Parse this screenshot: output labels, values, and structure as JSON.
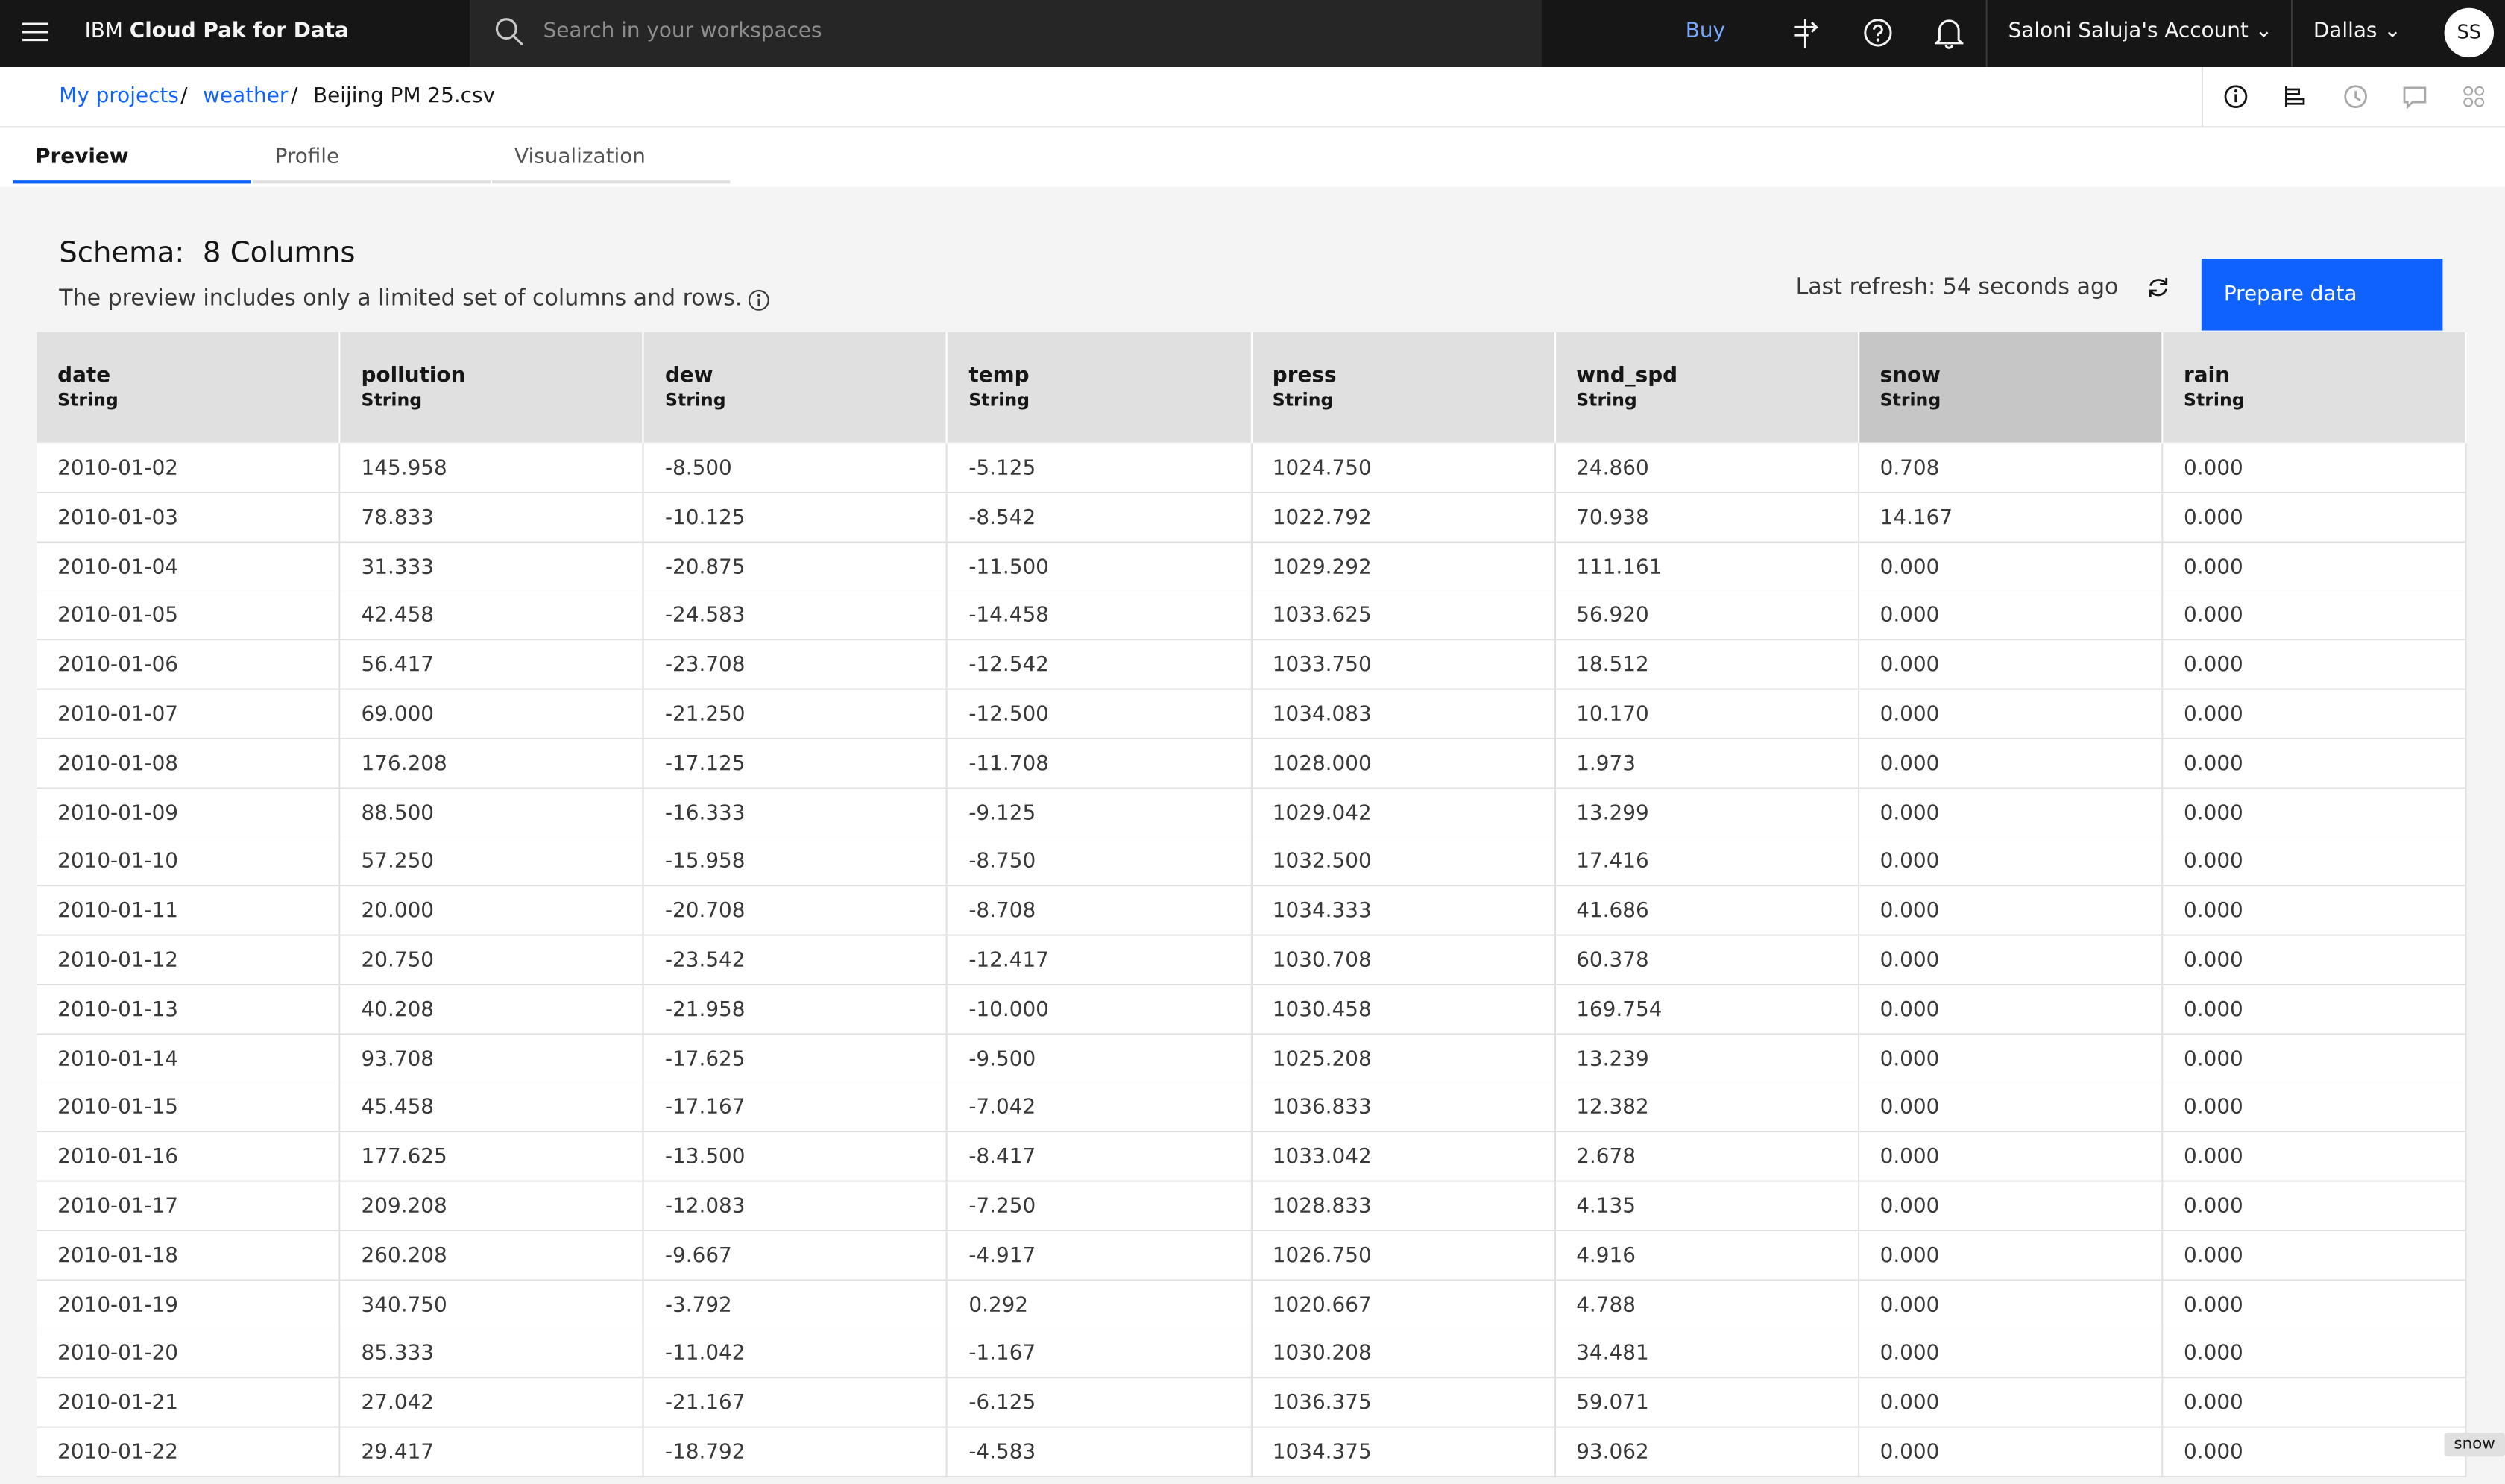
{
  "header": {
    "brand": "IBM",
    "product": "Cloud Pak for Data",
    "search_placeholder": "Search in your workspaces",
    "buy": "Buy",
    "account": "Saloni Saluja's Account",
    "region": "Dallas",
    "avatar": "SS"
  },
  "breadcrumb": [
    "My projects",
    "weather",
    "Beijing PM 25.csv"
  ],
  "tabs": [
    "Preview",
    "Profile",
    "Visualization"
  ],
  "schema": {
    "title": "Schema:",
    "columns_count": "8 Columns",
    "note": "The preview includes only a limited set of columns and rows.",
    "last_refresh": "Last refresh: 54 seconds ago",
    "button": "Prepare data"
  },
  "table": {
    "columns": [
      {
        "name": "date",
        "type": "String"
      },
      {
        "name": "pollution",
        "type": "String"
      },
      {
        "name": "dew",
        "type": "String"
      },
      {
        "name": "temp",
        "type": "String"
      },
      {
        "name": "press",
        "type": "String"
      },
      {
        "name": "wnd_spd",
        "type": "String"
      },
      {
        "name": "snow",
        "type": "String"
      },
      {
        "name": "rain",
        "type": "String"
      }
    ],
    "rows": [
      [
        "2010-01-02",
        "145.958",
        "-8.500",
        "-5.125",
        "1024.750",
        "24.860",
        "0.708",
        "0.000"
      ],
      [
        "2010-01-03",
        "78.833",
        "-10.125",
        "-8.542",
        "1022.792",
        "70.938",
        "14.167",
        "0.000"
      ],
      [
        "2010-01-04",
        "31.333",
        "-20.875",
        "-11.500",
        "1029.292",
        "111.161",
        "0.000",
        "0.000"
      ],
      [
        "2010-01-05",
        "42.458",
        "-24.583",
        "-14.458",
        "1033.625",
        "56.920",
        "0.000",
        "0.000"
      ],
      [
        "2010-01-06",
        "56.417",
        "-23.708",
        "-12.542",
        "1033.750",
        "18.512",
        "0.000",
        "0.000"
      ],
      [
        "2010-01-07",
        "69.000",
        "-21.250",
        "-12.500",
        "1034.083",
        "10.170",
        "0.000",
        "0.000"
      ],
      [
        "2010-01-08",
        "176.208",
        "-17.125",
        "-11.708",
        "1028.000",
        "1.973",
        "0.000",
        "0.000"
      ],
      [
        "2010-01-09",
        "88.500",
        "-16.333",
        "-9.125",
        "1029.042",
        "13.299",
        "0.000",
        "0.000"
      ],
      [
        "2010-01-10",
        "57.250",
        "-15.958",
        "-8.750",
        "1032.500",
        "17.416",
        "0.000",
        "0.000"
      ],
      [
        "2010-01-11",
        "20.000",
        "-20.708",
        "-8.708",
        "1034.333",
        "41.686",
        "0.000",
        "0.000"
      ],
      [
        "2010-01-12",
        "20.750",
        "-23.542",
        "-12.417",
        "1030.708",
        "60.378",
        "0.000",
        "0.000"
      ],
      [
        "2010-01-13",
        "40.208",
        "-21.958",
        "-10.000",
        "1030.458",
        "169.754",
        "0.000",
        "0.000"
      ],
      [
        "2010-01-14",
        "93.708",
        "-17.625",
        "-9.500",
        "1025.208",
        "13.239",
        "0.000",
        "0.000"
      ],
      [
        "2010-01-15",
        "45.458",
        "-17.167",
        "-7.042",
        "1036.833",
        "12.382",
        "0.000",
        "0.000"
      ],
      [
        "2010-01-16",
        "177.625",
        "-13.500",
        "-8.417",
        "1033.042",
        "2.678",
        "0.000",
        "0.000"
      ],
      [
        "2010-01-17",
        "209.208",
        "-12.083",
        "-7.250",
        "1028.833",
        "4.135",
        "0.000",
        "0.000"
      ],
      [
        "2010-01-18",
        "260.208",
        "-9.667",
        "-4.917",
        "1026.750",
        "4.916",
        "0.000",
        "0.000"
      ],
      [
        "2010-01-19",
        "340.750",
        "-3.792",
        "0.292",
        "1020.667",
        "4.788",
        "0.000",
        "0.000"
      ],
      [
        "2010-01-20",
        "85.333",
        "-11.042",
        "-1.167",
        "1030.208",
        "34.481",
        "0.000",
        "0.000"
      ],
      [
        "2010-01-21",
        "27.042",
        "-21.167",
        "-6.125",
        "1036.375",
        "59.071",
        "0.000",
        "0.000"
      ],
      [
        "2010-01-22",
        "29.417",
        "-18.792",
        "-4.583",
        "1034.375",
        "93.062",
        "0.000",
        "0.000"
      ]
    ]
  },
  "tooltip": "snow"
}
